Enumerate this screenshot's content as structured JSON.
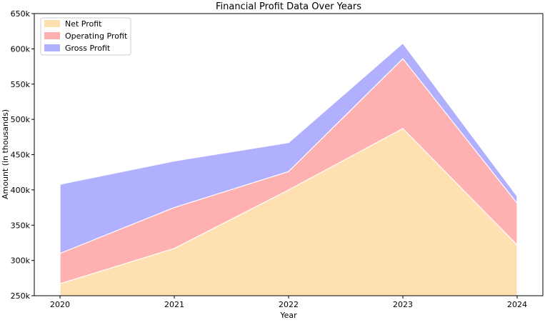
{
  "chart_data": {
    "type": "area",
    "stacked": false,
    "title": "Financial Profit Data Over Years",
    "xlabel": "Year",
    "ylabel": "Amount (in thousands)",
    "categories": [
      "2020",
      "2021",
      "2022",
      "2023",
      "2024"
    ],
    "ylim": [
      250,
      650
    ],
    "yticks": [
      250,
      300,
      350,
      400,
      450,
      500,
      550,
      600,
      650
    ],
    "ytick_labels": [
      "250k",
      "300k",
      "350k",
      "400k",
      "450k",
      "500k",
      "550k",
      "600k",
      "650k"
    ],
    "grid": false,
    "legend_position": "top-left",
    "series": [
      {
        "name": "Net Profit",
        "values": [
          267,
          317,
          400,
          487,
          322
        ],
        "color": "#ffe0b0"
      },
      {
        "name": "Operating Profit",
        "values": [
          310,
          375,
          426,
          586,
          381
        ],
        "color": "#ffb0b0"
      },
      {
        "name": "Gross Profit",
        "values": [
          408,
          441,
          467,
          608,
          391
        ],
        "color": "#b0b0ff"
      }
    ],
    "draw_order": [
      2,
      1,
      0
    ]
  }
}
